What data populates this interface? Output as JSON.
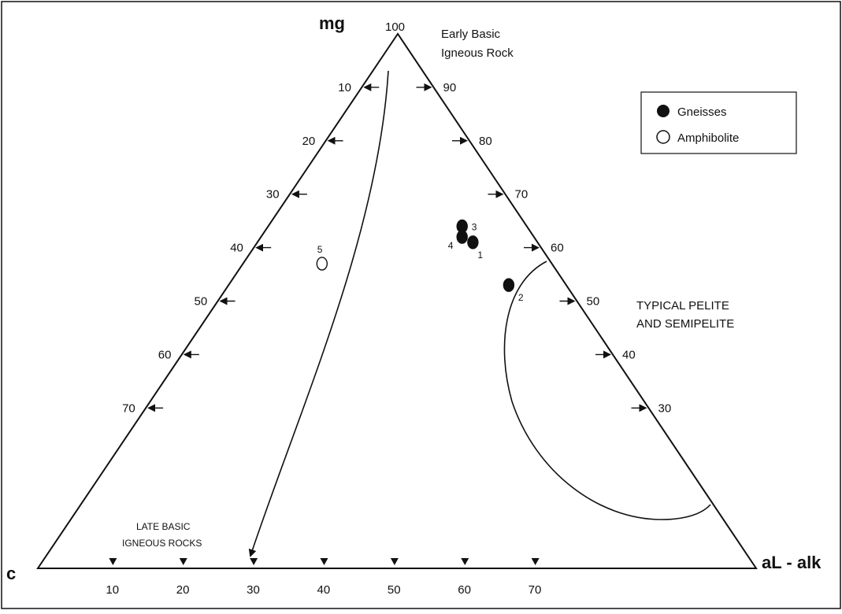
{
  "chart_data": {
    "type": "ternary",
    "vertices": {
      "top": "mg",
      "left": "c",
      "right": "aL - alk"
    },
    "apex_label": "100",
    "left_edge_ticks": [
      "10",
      "20",
      "30",
      "40",
      "50",
      "60",
      "70"
    ],
    "right_edge_ticks": [
      "90",
      "80",
      "70",
      "60",
      "50",
      "40",
      "30"
    ],
    "bottom_ticks": [
      "10",
      "20",
      "30",
      "40",
      "50",
      "60",
      "70"
    ],
    "annotations": {
      "early": [
        "Early Basic",
        "Igneous Rock"
      ],
      "late": [
        "LATE BASIC",
        "IGNEOUS ROCKS"
      ],
      "pelite": [
        "TYPICAL PELITE",
        "AND SEMIPELITE"
      ]
    },
    "legend": [
      {
        "label": "Gneisses",
        "style": "filled"
      },
      {
        "label": "Amphibolite",
        "style": "open"
      }
    ],
    "points": [
      {
        "id": "1",
        "series": "Gneisses",
        "mg": 61,
        "c": 9,
        "al_alk": 30
      },
      {
        "id": "2",
        "series": "Gneisses",
        "mg": 53,
        "c": 8,
        "al_alk": 39
      },
      {
        "id": "3",
        "series": "Gneisses",
        "mg": 64,
        "c": 9,
        "al_alk": 27
      },
      {
        "id": "4",
        "series": "Gneisses",
        "mg": 62,
        "c": 10,
        "al_alk": 28
      },
      {
        "id": "5",
        "series": "Amphibolite",
        "mg": 57,
        "c": 32,
        "al_alk": 11
      }
    ],
    "colors": {
      "ink": "#111111",
      "background": "#ffffff"
    }
  }
}
